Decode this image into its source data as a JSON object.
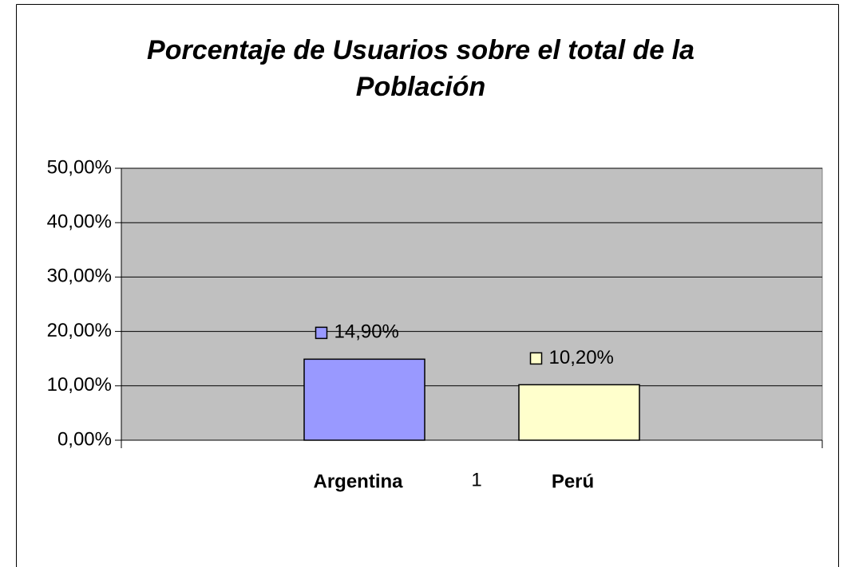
{
  "chart_data": {
    "type": "bar",
    "title": "Porcentaje de Usuarios sobre el total de la Población",
    "categories": [
      "1"
    ],
    "series": [
      {
        "name": "Argentina",
        "color": "#9999ff",
        "values": [
          14.9
        ],
        "value_labels": [
          "14,90%"
        ]
      },
      {
        "name": "Perú",
        "color": "#ffffcc",
        "values": [
          10.2
        ],
        "value_labels": [
          "10,20%"
        ]
      }
    ],
    "ylim": [
      0,
      50
    ],
    "yticks": [
      {
        "value": 0,
        "label": "0,00%"
      },
      {
        "value": 10,
        "label": "10,00%"
      },
      {
        "value": 20,
        "label": "20,00%"
      },
      {
        "value": 30,
        "label": "30,00%"
      },
      {
        "value": 40,
        "label": "40,00%"
      },
      {
        "value": 50,
        "label": "50,00%"
      }
    ],
    "grid": true,
    "plot_background": "#c0c0c0"
  }
}
